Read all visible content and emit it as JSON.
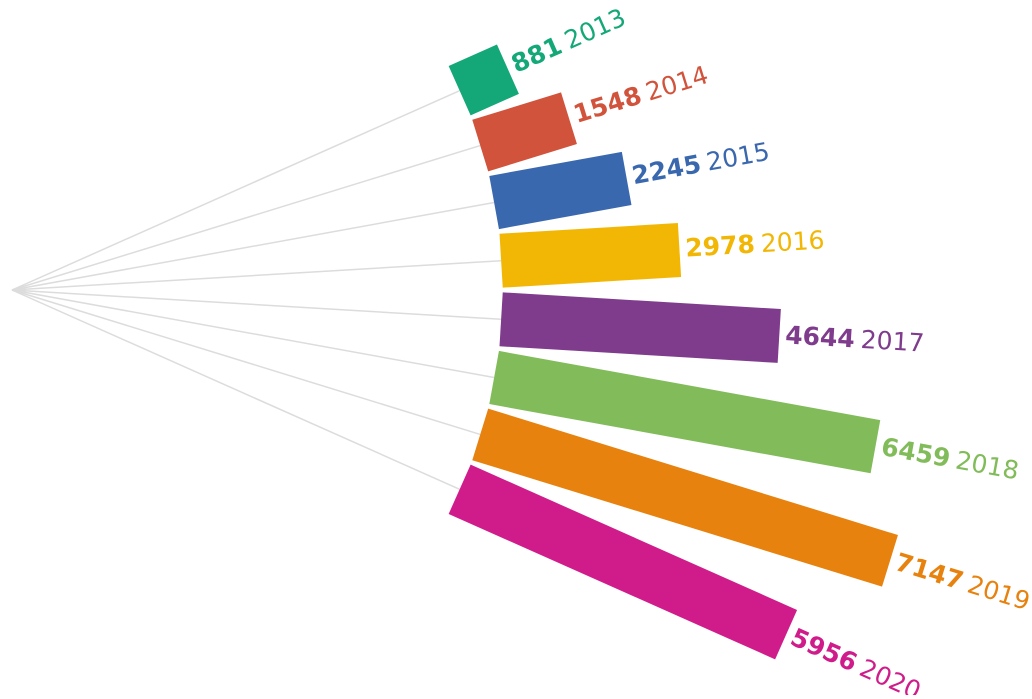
{
  "chart_data": {
    "type": "bar",
    "categories": [
      "2013",
      "2014",
      "2015",
      "2016",
      "2017",
      "2018",
      "2019",
      "2020"
    ],
    "values": [
      881,
      1548,
      2245,
      2978,
      4644,
      6459,
      7147,
      5956
    ],
    "colors": [
      "#14a878",
      "#d2533c",
      "#3a68ae",
      "#f2b705",
      "#7f3b8c",
      "#82bc5a",
      "#e8820f",
      "#d01c8b"
    ]
  }
}
